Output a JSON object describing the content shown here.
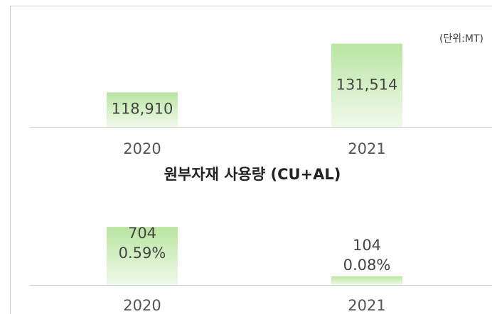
{
  "chart_data": [
    {
      "type": "bar",
      "title": "원부자재 사용량 (CU+AL)",
      "unit_label": "(단위:MT)",
      "categories": [
        "2020",
        "2021"
      ],
      "values": [
        118910,
        131514
      ],
      "value_labels": [
        "118,910",
        "131,514"
      ],
      "ylim": [
        110000,
        134000
      ],
      "color": "#b9e5a1"
    },
    {
      "type": "bar",
      "categories": [
        "2020",
        "2021"
      ],
      "values": [
        704,
        104
      ],
      "share_labels": [
        "0.59%",
        "0.08%"
      ],
      "ylim": [
        0,
        800
      ],
      "color": "#b9e5a1"
    }
  ]
}
